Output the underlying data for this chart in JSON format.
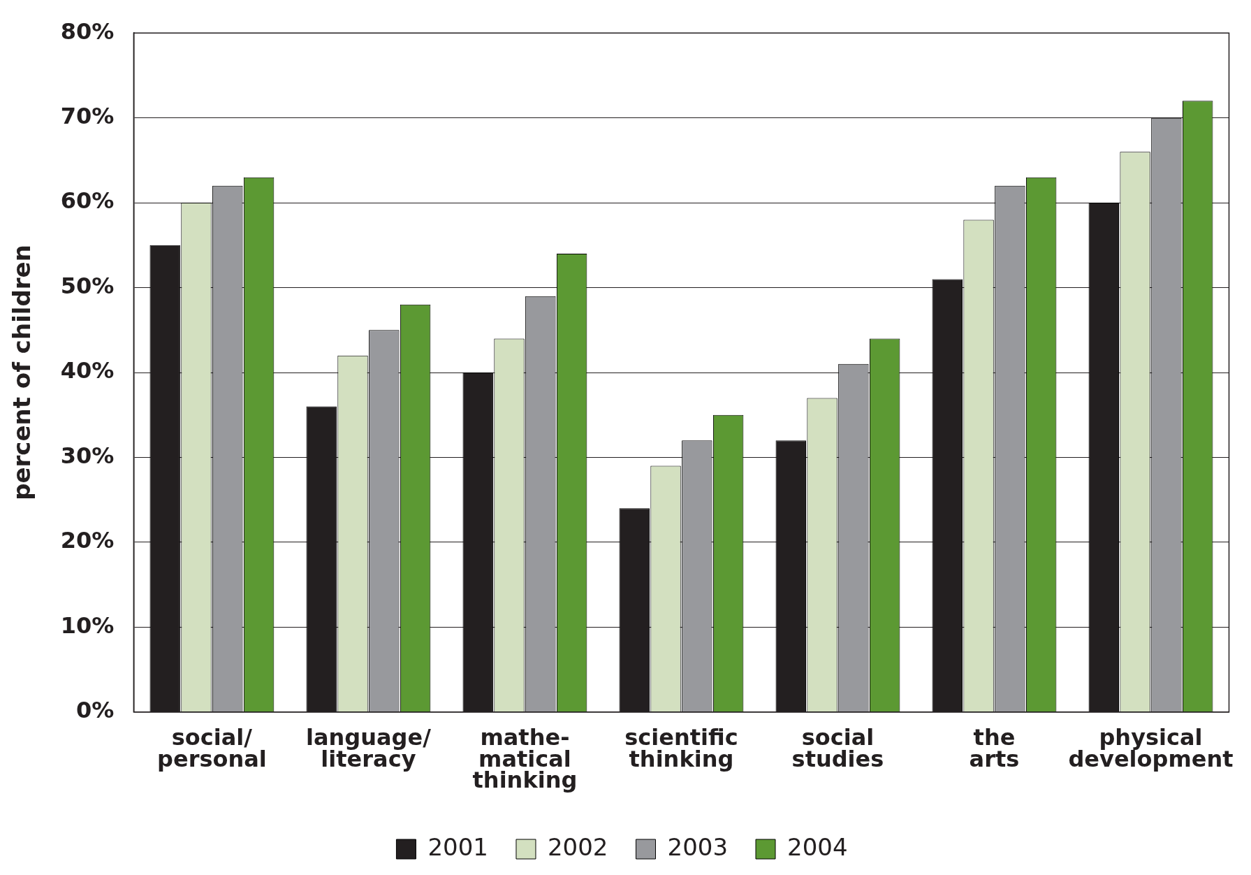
{
  "chart_data": {
    "type": "bar",
    "ylabel": "percent of children",
    "categories": [
      "social/\npersonal",
      "language/\nliteracy",
      "mathe-\nmatical\nthinking",
      "scientific\nthinking",
      "social\nstudies",
      "the\narts",
      "physical\ndevelopment"
    ],
    "series": [
      {
        "name": "2001",
        "color": "#231f20",
        "values": [
          55,
          36,
          40,
          24,
          32,
          51,
          60
        ]
      },
      {
        "name": "2002",
        "color": "#d3e0c0",
        "values": [
          60,
          42,
          44,
          29,
          37,
          58,
          66
        ]
      },
      {
        "name": "2003",
        "color": "#98999d",
        "values": [
          62,
          45,
          49,
          32,
          41,
          62,
          70
        ]
      },
      {
        "name": "2004",
        "color": "#5c9933",
        "values": [
          63,
          48,
          54,
          35,
          44,
          63,
          72
        ]
      }
    ],
    "ylim": [
      0,
      80
    ],
    "yticks": [
      {
        "value": 0,
        "label": "0%"
      },
      {
        "value": 10,
        "label": "10%"
      },
      {
        "value": 20,
        "label": "20%"
      },
      {
        "value": 30,
        "label": "30%"
      },
      {
        "value": 40,
        "label": "40%"
      },
      {
        "value": 50,
        "label": "50%"
      },
      {
        "value": 60,
        "label": "60%"
      },
      {
        "value": 70,
        "label": "70%"
      },
      {
        "value": 80,
        "label": "80%"
      }
    ],
    "grid": "y",
    "legend": "bottom"
  }
}
